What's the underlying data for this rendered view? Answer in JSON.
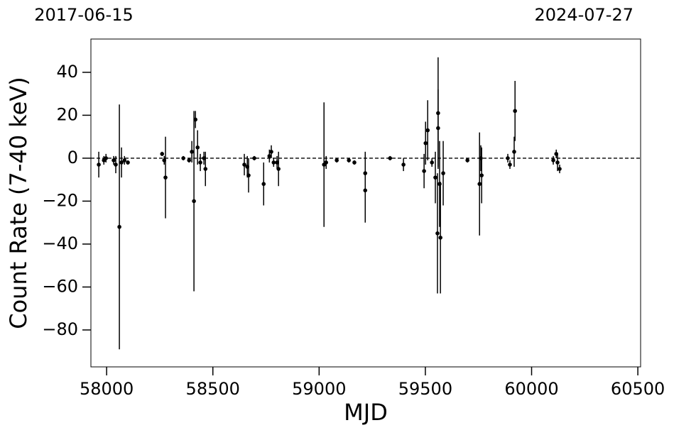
{
  "chart_data": {
    "type": "errorbar-scatter",
    "xlabel": "MJD",
    "ylabel": "Count Rate (7-40 keV)",
    "xlim": [
      57926,
      60513
    ],
    "ylim": [
      -97.2,
      55.5
    ],
    "xticks": [
      58000,
      58500,
      59000,
      59500,
      60000,
      60500
    ],
    "yticks": [
      {
        "value": -80,
        "label": "−80"
      },
      {
        "value": -60,
        "label": "−60"
      },
      {
        "value": -40,
        "label": "−40"
      },
      {
        "value": -20,
        "label": "−20"
      },
      0,
      20,
      40
    ],
    "x2ticks": [
      {
        "value": 57926,
        "label": "2017-06-15"
      },
      {
        "value": 60513,
        "label": "2024-07-27"
      }
    ],
    "hline": 0,
    "color": "#000000",
    "x": [
      57963,
      57987,
      57997,
      58033,
      58043,
      58060,
      58070,
      58084,
      58100,
      58261,
      58271,
      58277,
      58361,
      58388,
      58401,
      58411,
      58418,
      58428,
      58441,
      58458,
      58465,
      58648,
      58662,
      58668,
      58695,
      58739,
      58766,
      58775,
      58786,
      58802,
      58809,
      59023,
      59033,
      59083,
      59140,
      59166,
      59217,
      59217,
      59334,
      59397,
      59494,
      59501,
      59511,
      59531,
      59547,
      59557,
      59560,
      59560,
      59567,
      59571,
      59584,
      59698,
      59755,
      59761,
      59765,
      59888,
      59898,
      59918,
      59922,
      60102,
      60116,
      60122,
      60132
    ],
    "values": [
      -3,
      -1,
      0,
      -1,
      -3,
      -32,
      -2,
      -1,
      -2,
      2,
      -1,
      -9,
      0,
      -1,
      3,
      -20,
      18,
      5,
      -2,
      0,
      -5,
      -3,
      -4,
      -8,
      0,
      -12,
      1,
      3,
      -2,
      -2,
      -5,
      -3,
      -2,
      -1,
      -1,
      -2,
      -15,
      -7,
      0,
      -3,
      -6,
      7,
      13,
      -2,
      -9,
      -35,
      21,
      14,
      -12,
      -37,
      -7,
      -1,
      -12,
      0,
      -8,
      0,
      -3,
      3,
      22,
      -1,
      2,
      -2,
      -5
    ],
    "errors": [
      6,
      2,
      2,
      2,
      4,
      57,
      7,
      2,
      1,
      1,
      2,
      19,
      1,
      1,
      5,
      42,
      4,
      8,
      4,
      3,
      8,
      5,
      5,
      8,
      1,
      10,
      3,
      3,
      2,
      3,
      8,
      29,
      3,
      1,
      1,
      1,
      15,
      10,
      1,
      3,
      8,
      10,
      14,
      2,
      12,
      28,
      26,
      18,
      20,
      26,
      15,
      1,
      24,
      6,
      13,
      2,
      2,
      7,
      14,
      2,
      2,
      4,
      2
    ]
  }
}
